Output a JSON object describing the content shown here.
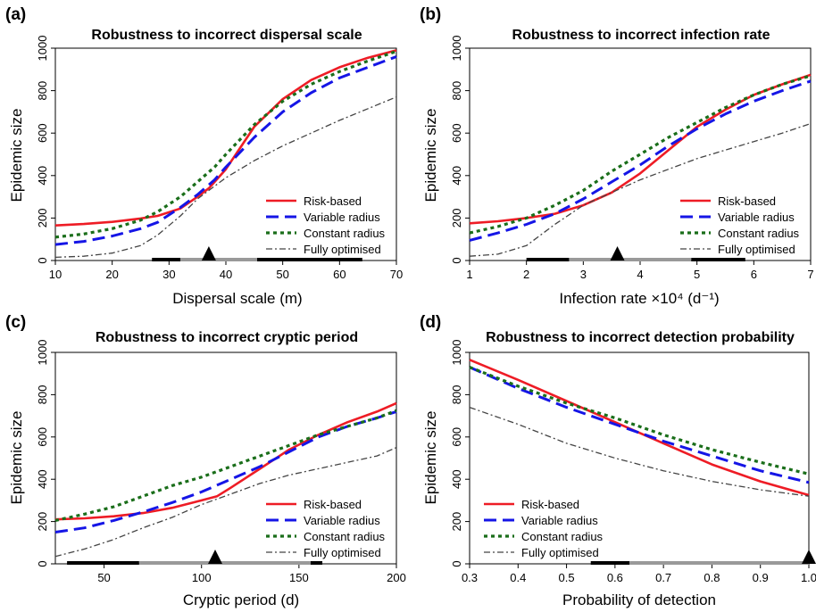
{
  "chart_data": [
    {
      "type": "line",
      "letter": "(a)",
      "title": "Robustness to incorrect dispersal scale",
      "xlabel": "Dispersal scale (m)",
      "ylabel": "Epidemic size",
      "xlim": [
        10,
        70
      ],
      "ylim": [
        0,
        1000
      ],
      "xticks": [
        10,
        20,
        30,
        40,
        50,
        60,
        70
      ],
      "xtick_labels": [
        "10",
        "20",
        "30",
        "40",
        "50",
        "60",
        "70"
      ],
      "yticks": [
        0,
        200,
        400,
        600,
        800,
        1000
      ],
      "ytick_labels": [
        "0",
        "200",
        "400",
        "600",
        "800",
        "1000"
      ],
      "legend_position": "bottom-right",
      "series": [
        {
          "name": "Risk-based",
          "color": "#ee1c25",
          "style": "solid",
          "x": [
            10,
            15,
            20,
            25,
            28,
            32,
            35,
            37,
            40,
            43,
            45,
            50,
            55,
            60,
            65,
            70
          ],
          "y": [
            165,
            172,
            182,
            198,
            210,
            245,
            300,
            340,
            430,
            550,
            630,
            760,
            850,
            910,
            955,
            990
          ]
        },
        {
          "name": "Variable radius",
          "color": "#1515e6",
          "style": "dashed",
          "x": [
            10,
            15,
            20,
            25,
            28,
            32,
            35,
            38,
            40,
            45,
            50,
            55,
            60,
            65,
            70
          ],
          "y": [
            75,
            90,
            115,
            150,
            180,
            250,
            310,
            380,
            440,
            580,
            700,
            790,
            860,
            910,
            960
          ]
        },
        {
          "name": "Constant radius",
          "color": "#1a6e1a",
          "style": "dotted",
          "x": [
            10,
            15,
            20,
            25,
            28,
            32,
            35,
            38,
            40,
            45,
            50,
            55,
            60,
            65,
            70
          ],
          "y": [
            110,
            125,
            150,
            190,
            230,
            300,
            370,
            440,
            500,
            640,
            750,
            830,
            890,
            940,
            985
          ]
        },
        {
          "name": "Fully optimised",
          "color": "#444444",
          "style": "dashdot",
          "x": [
            10,
            15,
            20,
            25,
            28,
            32,
            35,
            40,
            45,
            50,
            55,
            60,
            65,
            70
          ],
          "y": [
            15,
            20,
            35,
            70,
            120,
            210,
            290,
            390,
            470,
            540,
            600,
            660,
            715,
            770
          ]
        }
      ],
      "range_bars": [
        {
          "from": 27,
          "to": 32,
          "color": "#000000"
        },
        {
          "from": 32,
          "to": 45.5,
          "color": "#999999"
        },
        {
          "from": 45.5,
          "to": 64,
          "color": "#000000"
        }
      ],
      "marker_x": 37
    },
    {
      "type": "line",
      "letter": "(b)",
      "title": "Robustness to incorrect infection rate",
      "xlabel": "Infection rate ×10⁴ (d⁻¹)",
      "ylabel": "Epidemic size",
      "xlim": [
        1,
        7
      ],
      "ylim": [
        0,
        1000
      ],
      "xticks": [
        1,
        2,
        3,
        4,
        5,
        6,
        7
      ],
      "xtick_labels": [
        "1",
        "2",
        "3",
        "4",
        "5",
        "6",
        "7"
      ],
      "yticks": [
        0,
        200,
        400,
        600,
        800,
        1000
      ],
      "ytick_labels": [
        "0",
        "200",
        "400",
        "600",
        "800",
        "1000"
      ],
      "legend_position": "bottom-right",
      "series": [
        {
          "name": "Risk-based",
          "color": "#ee1c25",
          "style": "solid",
          "x": [
            1,
            1.5,
            2,
            2.5,
            3,
            3.5,
            4,
            4.5,
            5,
            5.5,
            6,
            6.5,
            7
          ],
          "y": [
            175,
            185,
            200,
            220,
            260,
            320,
            410,
            520,
            630,
            710,
            780,
            830,
            875
          ]
        },
        {
          "name": "Variable radius",
          "color": "#1515e6",
          "style": "dashed",
          "x": [
            1,
            1.5,
            2,
            2.5,
            3,
            3.5,
            4,
            4.5,
            5,
            5.5,
            6,
            6.5,
            7
          ],
          "y": [
            95,
            130,
            170,
            220,
            290,
            370,
            450,
            540,
            620,
            690,
            750,
            800,
            845
          ]
        },
        {
          "name": "Constant radius",
          "color": "#1a6e1a",
          "style": "dotted",
          "x": [
            1,
            1.5,
            2,
            2.5,
            3,
            3.5,
            4,
            4.5,
            5,
            5.5,
            6,
            6.5,
            7
          ],
          "y": [
            130,
            160,
            200,
            260,
            330,
            420,
            500,
            580,
            650,
            720,
            780,
            830,
            870
          ]
        },
        {
          "name": "Fully optimised",
          "color": "#444444",
          "style": "dashdot",
          "x": [
            1,
            1.5,
            2,
            2.5,
            3,
            3.5,
            4,
            4.5,
            5,
            5.5,
            6,
            6.5,
            7
          ],
          "y": [
            20,
            30,
            70,
            170,
            260,
            320,
            380,
            430,
            480,
            520,
            560,
            600,
            645
          ]
        }
      ],
      "range_bars": [
        {
          "from": 2,
          "to": 2.75,
          "color": "#000000"
        },
        {
          "from": 2.75,
          "to": 4.9,
          "color": "#999999"
        },
        {
          "from": 4.9,
          "to": 5.85,
          "color": "#000000"
        }
      ],
      "marker_x": 3.6
    },
    {
      "type": "line",
      "letter": "(c)",
      "title": "Robustness to incorrect cryptic period",
      "xlabel": "Cryptic period (d)",
      "ylabel": "Epidemic size",
      "xlim": [
        25,
        200
      ],
      "ylim": [
        0,
        1000
      ],
      "xticks": [
        50,
        100,
        150,
        200
      ],
      "xtick_labels": [
        "50",
        "100",
        "150",
        "200"
      ],
      "yticks": [
        0,
        200,
        400,
        600,
        800,
        1000
      ],
      "ytick_labels": [
        "0",
        "200",
        "400",
        "600",
        "800",
        "1000"
      ],
      "legend_position": "bottom-right",
      "series": [
        {
          "name": "Risk-based",
          "color": "#ee1c25",
          "style": "solid",
          "x": [
            25,
            40,
            55,
            70,
            85,
            100,
            108,
            115,
            130,
            145,
            160,
            175,
            190,
            200
          ],
          "y": [
            210,
            215,
            225,
            240,
            265,
            300,
            320,
            360,
            450,
            540,
            610,
            670,
            720,
            760
          ]
        },
        {
          "name": "Variable radius",
          "color": "#1515e6",
          "style": "dashed",
          "x": [
            25,
            40,
            55,
            70,
            85,
            100,
            115,
            130,
            145,
            160,
            175,
            190,
            200
          ],
          "y": [
            150,
            170,
            205,
            245,
            290,
            340,
            400,
            460,
            530,
            600,
            650,
            690,
            720
          ]
        },
        {
          "name": "Constant radius",
          "color": "#1a6e1a",
          "style": "dotted",
          "x": [
            25,
            40,
            55,
            70,
            85,
            100,
            115,
            130,
            145,
            160,
            175,
            190,
            200
          ],
          "y": [
            205,
            235,
            270,
            320,
            370,
            410,
            460,
            510,
            560,
            610,
            650,
            690,
            725
          ]
        },
        {
          "name": "Fully optimised",
          "color": "#444444",
          "style": "dashdot",
          "x": [
            25,
            40,
            55,
            70,
            85,
            100,
            115,
            130,
            145,
            160,
            175,
            190,
            200
          ],
          "y": [
            35,
            70,
            115,
            170,
            220,
            280,
            330,
            380,
            420,
            450,
            480,
            510,
            550
          ]
        }
      ],
      "range_bars": [
        {
          "from": 31,
          "to": 68,
          "color": "#000000"
        },
        {
          "from": 68,
          "to": 156,
          "color": "#999999"
        },
        {
          "from": 156,
          "to": 162,
          "color": "#000000"
        }
      ],
      "marker_x": 107
    },
    {
      "type": "line",
      "letter": "(d)",
      "title": "Robustness to incorrect detection probability",
      "xlabel": "Probability of detection",
      "ylabel": "Epidemic size",
      "xlim": [
        0.3,
        1.0
      ],
      "ylim": [
        0,
        1000
      ],
      "xticks": [
        0.3,
        0.4,
        0.5,
        0.6,
        0.7,
        0.8,
        0.9,
        1.0
      ],
      "xtick_labels": [
        "0.3",
        "0.4",
        "0.5",
        "0.6",
        "0.7",
        "0.8",
        "0.9",
        "1.0"
      ],
      "yticks": [
        0,
        200,
        400,
        600,
        800,
        1000
      ],
      "ytick_labels": [
        "0",
        "200",
        "400",
        "600",
        "800",
        "1000"
      ],
      "legend_position": "bottom-left",
      "series": [
        {
          "name": "Risk-based",
          "color": "#ee1c25",
          "style": "solid",
          "x": [
            0.3,
            0.4,
            0.5,
            0.6,
            0.7,
            0.8,
            0.9,
            1.0
          ],
          "y": [
            965,
            870,
            770,
            670,
            570,
            470,
            390,
            325
          ]
        },
        {
          "name": "Variable radius",
          "color": "#1515e6",
          "style": "dashed",
          "x": [
            0.3,
            0.4,
            0.5,
            0.6,
            0.7,
            0.8,
            0.9,
            1.0
          ],
          "y": [
            930,
            830,
            740,
            660,
            580,
            510,
            440,
            385
          ]
        },
        {
          "name": "Constant radius",
          "color": "#1a6e1a",
          "style": "dotted",
          "x": [
            0.3,
            0.4,
            0.5,
            0.6,
            0.7,
            0.8,
            0.9,
            1.0
          ],
          "y": [
            930,
            840,
            760,
            690,
            610,
            540,
            480,
            425
          ]
        },
        {
          "name": "Fully optimised",
          "color": "#444444",
          "style": "dashdot",
          "x": [
            0.3,
            0.4,
            0.5,
            0.6,
            0.7,
            0.8,
            0.9,
            1.0
          ],
          "y": [
            740,
            660,
            570,
            500,
            440,
            390,
            350,
            320
          ]
        }
      ],
      "range_bars": [
        {
          "from": 0.55,
          "to": 0.63,
          "color": "#000000"
        },
        {
          "from": 0.63,
          "to": 1.0,
          "color": "#999999"
        }
      ],
      "marker_x": 1.0
    }
  ]
}
